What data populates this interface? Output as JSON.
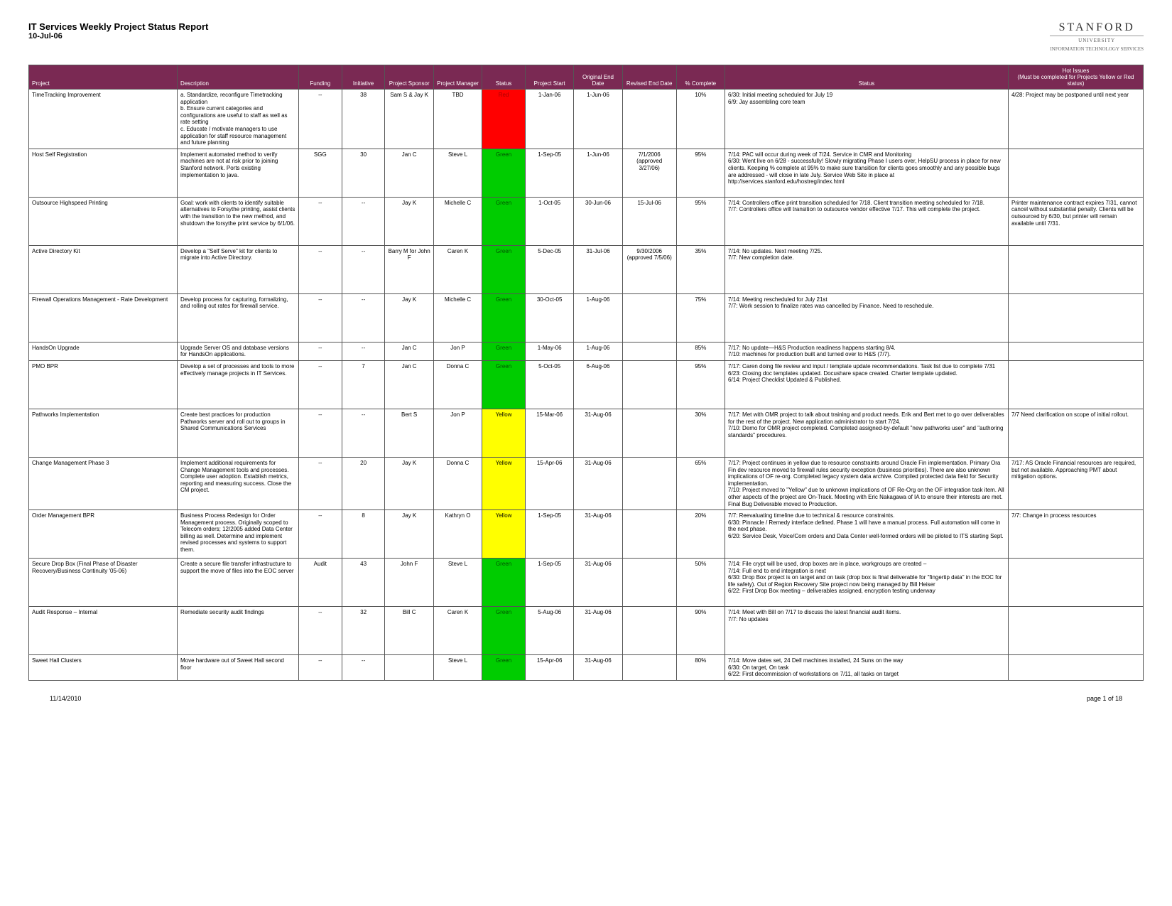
{
  "header": {
    "title": "IT Services Weekly Project Status Report",
    "date": "10-Jul-06",
    "logo_name": "STANFORD",
    "logo_sub": "UNIVERSITY",
    "logo_tag": "INFORMATION TECHNOLOGY SERVICES"
  },
  "columns": [
    "Project",
    "Description",
    "Funding",
    "Initiative",
    "Project Sponsor",
    "Project Manager",
    "Status",
    "Project Start",
    "Original End Date",
    "Revised End Date",
    "% Complete",
    "Status",
    "Hot Issues\n(Must be completed for Projects Yellow or Red status)"
  ],
  "status_colors": {
    "Red": "#ff0000",
    "Green": "#00cc00",
    "Yellow": "#ffff00"
  },
  "rows": [
    {
      "project": "TimeTracking Improvement",
      "desc": "a. Standardize, reconfigure Timetracking application\nb. Ensure current categories and configurations are useful to staff as well as rate setting\nc. Educate / motivate managers to use application for staff resource management and future planning",
      "funding": "--",
      "init": "38",
      "sponsor": "Sam S & Jay K",
      "manager": "TBD",
      "status": "Red",
      "status_text_color": "#aa0000",
      "start": "1-Jan-06",
      "end_orig": "1-Jun-06",
      "end_rev": "",
      "pct": "10%",
      "status_txt": "6/30: Initial meeting scheduled for July 19\n6/9: Jay assembling core team",
      "hot": "4/28: Project may be postponed until next year"
    },
    {
      "project": "Host Self Registration",
      "desc": "Implement automated method to verify machines are not at risk prior to joining Stanford network. Ports existing implementation to java.",
      "funding": "SGG",
      "init": "30",
      "sponsor": "Jan C",
      "manager": "Steve L",
      "status": "Green",
      "start": "1-Sep-05",
      "end_orig": "1-Jun-06",
      "end_rev": "7/1/2006\n(approved 3/27/06)",
      "pct": "95%",
      "status_txt": "7/14: PAC will occur during week of 7/24. Service in CMR and Monitoring\n6/30: Went live on 6/28 - successfully! Slowly migrating Phase I users over, HelpSU process in place for new clients. Keeping % complete at 95% to make sure transition for clients goes smoothly and any possible bugs are addressed - will close in late July. Service Web Site in place at http://services.stanford.edu/hostreg/index.html",
      "hot": ""
    },
    {
      "project": "Outsource Highspeed Printing",
      "desc": "Goal: work with clients to identify suitable alternatives to Forsythe printing, assist clients with the transition to the new method, and shutdown the forsythe print service by 6/1/06.",
      "funding": "--",
      "init": "--",
      "sponsor": "Jay K",
      "manager": "Michelle C",
      "status": "Green",
      "start": "1-Oct-05",
      "end_orig": "30-Jun-06",
      "end_rev": "15-Jul-06",
      "pct": "95%",
      "status_txt": "7/14: Controllers office print transition scheduled for 7/18. Client transition meeting scheduled for 7/18.\n7/7: Controllers office will transition to outsource vendor effective 7/17. This will complete the project.",
      "hot": "Printer maintenance contract expires 7/31, cannot cancel without substantial penalty. Clients will be outsourced by 6/30, but printer will remain available until 7/31."
    },
    {
      "project": "Active Directory Kit",
      "desc": "Develop a \"Self Serve\" kit for clients to migrate into Active Directory.",
      "funding": "--",
      "init": "--",
      "sponsor": "Barry M for John F",
      "manager": "Caren K",
      "status": "Green",
      "start": "5-Dec-05",
      "end_orig": "31-Jul-06",
      "end_rev": "9/30/2006\n(approved 7/5/06)",
      "pct": "35%",
      "status_txt": "7/14: No updates. Next meeting 7/25.\n7/7: New completion date.",
      "hot": ""
    },
    {
      "project": "Firewall Operations Management - Rate Development",
      "desc": "Develop process for capturing, formalizing, and rolling out rates for firewall service.",
      "funding": "--",
      "init": "--",
      "sponsor": "Jay K",
      "manager": "Michelle C",
      "status": "Green",
      "start": "30-Oct-05",
      "end_orig": "1-Aug-06",
      "end_rev": "",
      "pct": "75%",
      "status_txt": "7/14: Meeting rescheduled for July 21st\n7/7: Work session to finalize rates was cancelled by Finance. Need to reschedule.",
      "hot": ""
    },
    {
      "project": "HandsOn Upgrade",
      "desc": "Upgrade Server OS and database versions for HandsOn applications.",
      "funding": "--",
      "init": "--",
      "sponsor": "Jan C",
      "manager": "Jon P",
      "status": "Green",
      "start": "1-May-06",
      "end_orig": "1-Aug-06",
      "end_rev": "",
      "pct": "85%",
      "status_txt": "7/17: No update—H&S Production readiness happens starting 8/4.\n7/10: machines for production built and turned over to H&S (7/7).",
      "hot": "",
      "short": true
    },
    {
      "project": "PMO BPR",
      "desc": "Develop a set of processes and tools to more effectively manage projects in IT Services.",
      "funding": "--",
      "init": "7",
      "sponsor": "Jan C",
      "manager": "Donna C",
      "status": "Green",
      "start": "5-Oct-05",
      "end_orig": "6-Aug-06",
      "end_rev": "",
      "pct": "95%",
      "status_txt": "7/17: Caren doing file review and input / template update recommendations. Task list due to complete 7/31\n6/23: Closing doc templates updated. Docushare space created. Charter template updated.\n6/14: Project Checklist Updated & Published.",
      "hot": ""
    },
    {
      "project": "Pathworks Implementation",
      "desc": "Create best practices for production Pathworks server and roll out to groups in Shared Communications Services",
      "funding": "--",
      "init": "--",
      "sponsor": "Bert S",
      "manager": "Jon P",
      "status": "Yellow",
      "start": "15-Mar-06",
      "end_orig": "31-Aug-06",
      "end_rev": "",
      "pct": "30%",
      "status_txt": "7/17: Met with OMR project to talk about training and product needs. Erik and Bert met to go over deliverables for the rest of the project. New application administrator to start 7/24.\n7/10: Demo for OMR project completed. Completed assigned-by-default \"new pathworks user\" and \"authoring standards\" procedures.",
      "hot": "7/7 Need clarification on scope of initial rollout."
    },
    {
      "project": "Change Management Phase 3",
      "desc": "Implement additional requirements for Change Management tools and processes. Complete user adoption. Establish metrics, reporting and measuring success. Close the CM project.",
      "funding": "--",
      "init": "20",
      "sponsor": "Jay K",
      "manager": "Donna C",
      "status": "Yellow",
      "start": "15-Apr-06",
      "end_orig": "31-Aug-06",
      "end_rev": "",
      "pct": "65%",
      "status_txt": "7/17: Project continues in yellow due to resource constraints around Oracle Fin implementation. Primary Ora Fin dev resource moved to firewall rules security exception (business priorities). There are also unknown implications of OF re-org. Completed legacy system data archive. Compiled protected data field for Security implementation.\n7/10: Project moved to \"Yellow\" due to unknown implications of OF Re-Org on the OF integration task item. All other aspects of the project are On-Track. Meeting with Eric Nakagawa of IA to ensure their interests are met. Final Bug Deliverable moved to Production.",
      "hot": "7/17: AS Oracle Financial resources are required, but not available. Approaching PMT about mitigation options."
    },
    {
      "project": "Order Management BPR",
      "desc": "Business Process Redesign for Order Management process. Originally scoped to Telecom orders; 12/2005 added Data Center billing as well. Determine and implement revised processes and systems to support them.",
      "funding": "--",
      "init": "8",
      "sponsor": "Jay K",
      "manager": "Kathryn O",
      "status": "Yellow",
      "start": "1-Sep-05",
      "end_orig": "31-Aug-06",
      "end_rev": "",
      "pct": "20%",
      "status_txt": "7/7: Reevaluating timeline due to technical & resource constraints.\n6/30: Pinnacle / Remedy interface defined. Phase 1 will have a manual process. Full automation will come in the next phase.\n6/20: Service Desk, Voice/Com orders and Data Center well-formed orders will be piloted to ITS starting Sept.",
      "hot": "7/7: Change in process resources"
    },
    {
      "project": "Secure Drop Box (Final Phase of Disaster Recovery/Business Continuity '05-06)",
      "desc": "Create a secure file transfer infrastructure to support the move of files into the EOC server",
      "funding": "Audit",
      "init": "43",
      "sponsor": "John F",
      "manager": "Steve L",
      "status": "Green",
      "start": "1-Sep-05",
      "end_orig": "31-Aug-06",
      "end_rev": "",
      "pct": "50%",
      "status_txt": "7/14: File crypt will be used, drop boxes are in place, workgroups are created –\n7/14: Full end to end integration is next\n6/30: Drop Box project is on target and on task (drop box is final deliverable for \"fingertip data\" in the EOC for life safety). Out of Region Recovery Site project now being managed by Bill Heiser\n6/22: First Drop Box meeting – deliverables assigned, encryption testing underway",
      "hot": ""
    },
    {
      "project": "Audit Response – Internal",
      "desc": "Remediate security audit findings",
      "funding": "--",
      "init": "32",
      "sponsor": "Bill C",
      "manager": "Caren K",
      "status": "Green",
      "start": "5-Aug-06",
      "end_orig": "31-Aug-06",
      "end_rev": "",
      "pct": "90%",
      "status_txt": "7/14: Meet with Bill on 7/17 to discuss the latest financial audit items.\n7/7: No updates",
      "hot": ""
    },
    {
      "project": "Sweet Hall Clusters",
      "desc": "Move hardware out of Sweet Hall second floor",
      "funding": "--",
      "init": "--",
      "sponsor": "",
      "manager": "Steve L",
      "status": "Green",
      "start": "15-Apr-06",
      "end_orig": "31-Aug-06",
      "end_rev": "",
      "pct": "80%",
      "status_txt": "7/14: Move dates set, 24 Dell machines installed, 24 Suns on the way\n6/30: On target, On task\n6/22: First decommission of workstations on 7/11, all tasks on target",
      "hot": "",
      "short": true
    }
  ],
  "footer": {
    "left": "11/14/2010",
    "right": "page 1 of 18"
  }
}
